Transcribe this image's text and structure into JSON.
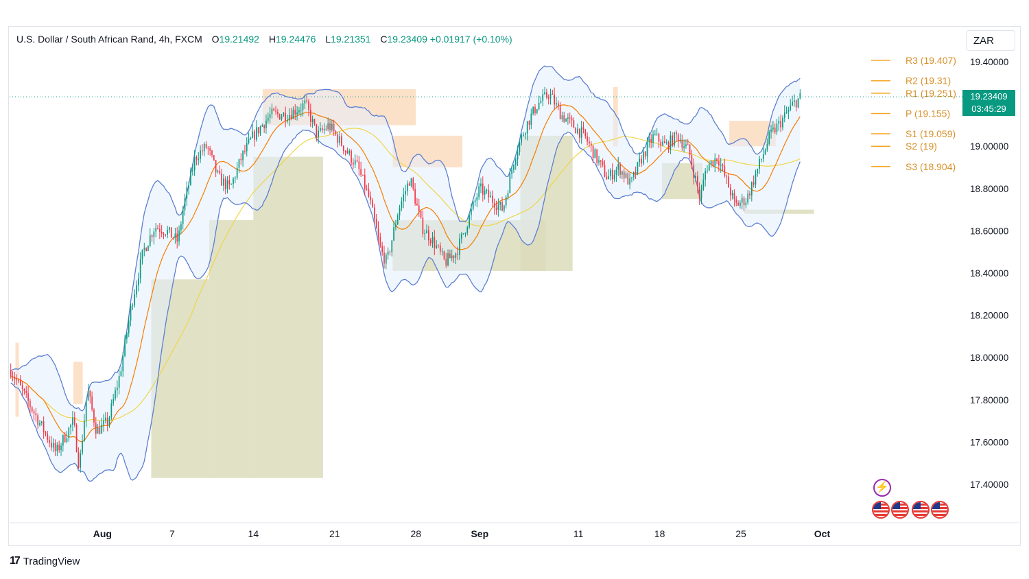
{
  "header": {
    "title": "U.S. Dollar / South African Rand, 4h, FXCM",
    "open_label": "O",
    "open": "19.21492",
    "high_label": "H",
    "high": "19.24476",
    "low_label": "L",
    "low": "19.21351",
    "close_label": "C",
    "close": "19.23409",
    "change": "+0.01917",
    "change_pct": "(+0.10%)"
  },
  "currency": "ZAR",
  "last_price": {
    "price": "19.23409",
    "countdown": "03:45:29"
  },
  "footer": {
    "brand": "TradingView",
    "brand_mark": "17"
  },
  "colors": {
    "up": "#089981",
    "down": "#f23645",
    "band": "#5b7fd1",
    "ema_fast": "#f57c00",
    "ema_slow": "#f0d54a",
    "resistance_zone": "#fcdcc0",
    "support_zone": "#dcdcbc",
    "pivot": "#f5a623"
  },
  "icons": [
    "lightning-icon",
    "us-flag-icon",
    "us-flag-icon",
    "us-flag-icon",
    "us-flag-icon"
  ],
  "chart_data": {
    "type": "candlestick",
    "symbol": "USDZAR",
    "timeframe": "4h",
    "ylim": [
      17.3,
      19.45
    ],
    "y_ticks": [
      "19.40000",
      "19.20000",
      "19.00000",
      "18.80000",
      "18.60000",
      "18.40000",
      "18.20000",
      "18.00000",
      "17.80000",
      "17.60000",
      "17.40000"
    ],
    "x_ticks": [
      {
        "label": "Aug",
        "bold": true,
        "day": 6
      },
      {
        "label": "7",
        "bold": false,
        "day": 12
      },
      {
        "label": "14",
        "bold": false,
        "day": 19
      },
      {
        "label": "21",
        "bold": false,
        "day": 26
      },
      {
        "label": "28",
        "bold": false,
        "day": 33
      },
      {
        "label": "Sep",
        "bold": true,
        "day": 38.5
      },
      {
        "label": "11",
        "bold": false,
        "day": 47
      },
      {
        "label": "18",
        "bold": false,
        "day": 54
      },
      {
        "label": "25",
        "bold": false,
        "day": 61
      },
      {
        "label": "Oct",
        "bold": true,
        "day": 68
      }
    ],
    "x_range_days": [
      -2,
      74
    ],
    "pivots": [
      {
        "label": "R3 (19.407)",
        "value": 19.407
      },
      {
        "label": "R2 (19.31)",
        "value": 19.31
      },
      {
        "label": "R1 (19.251)",
        "value": 19.251
      },
      {
        "label": "P (19.155)",
        "value": 19.155
      },
      {
        "label": "S1 (19.059)",
        "value": 19.059
      },
      {
        "label": "S2 (19)",
        "value": 19.0
      },
      {
        "label": "S3 (18.904)",
        "value": 18.904
      }
    ],
    "close_path": [
      [
        -2,
        17.95
      ],
      [
        0,
        17.75
      ],
      [
        2,
        17.55
      ],
      [
        3.5,
        17.7
      ],
      [
        4,
        17.48
      ],
      [
        4.7,
        17.85
      ],
      [
        5.5,
        17.65
      ],
      [
        6.5,
        17.7
      ],
      [
        7.5,
        17.92
      ],
      [
        8.5,
        18.25
      ],
      [
        9.5,
        18.5
      ],
      [
        10.5,
        18.62
      ],
      [
        11.5,
        18.6
      ],
      [
        12.5,
        18.55
      ],
      [
        13,
        18.72
      ],
      [
        14,
        18.95
      ],
      [
        15,
        19.0
      ],
      [
        16,
        18.85
      ],
      [
        17,
        18.8
      ],
      [
        18,
        18.95
      ],
      [
        19,
        19.05
      ],
      [
        20.5,
        19.15
      ],
      [
        22,
        19.15
      ],
      [
        23.5,
        19.2
      ],
      [
        24.5,
        19.05
      ],
      [
        25.5,
        19.1
      ],
      [
        27,
        18.98
      ],
      [
        28,
        18.9
      ],
      [
        29,
        18.75
      ],
      [
        30,
        18.5
      ],
      [
        30.5,
        18.45
      ],
      [
        31.5,
        18.7
      ],
      [
        32.5,
        18.85
      ],
      [
        33.5,
        18.62
      ],
      [
        34.5,
        18.55
      ],
      [
        35.5,
        18.45
      ],
      [
        36.5,
        18.5
      ],
      [
        37.5,
        18.65
      ],
      [
        38.5,
        18.8
      ],
      [
        39.5,
        18.75
      ],
      [
        40.5,
        18.7
      ],
      [
        41.5,
        18.95
      ],
      [
        42.5,
        19.1
      ],
      [
        43.5,
        19.2
      ],
      [
        44.5,
        19.25
      ],
      [
        45.5,
        19.15
      ],
      [
        46.5,
        19.1
      ],
      [
        47.5,
        19.05
      ],
      [
        48.5,
        18.95
      ],
      [
        49.5,
        18.85
      ],
      [
        50.5,
        18.9
      ],
      [
        51.5,
        18.82
      ],
      [
        52.5,
        18.95
      ],
      [
        53.5,
        19.05
      ],
      [
        54.5,
        19.0
      ],
      [
        55.5,
        19.05
      ],
      [
        56.5,
        18.98
      ],
      [
        57.5,
        18.75
      ],
      [
        58,
        18.9
      ],
      [
        59,
        18.95
      ],
      [
        60,
        18.8
      ],
      [
        60.5,
        18.72
      ],
      [
        61.5,
        18.75
      ],
      [
        62.5,
        18.9
      ],
      [
        63.5,
        19.05
      ],
      [
        64.5,
        19.12
      ],
      [
        65.5,
        19.2
      ],
      [
        66.2,
        19.234
      ]
    ]
  }
}
